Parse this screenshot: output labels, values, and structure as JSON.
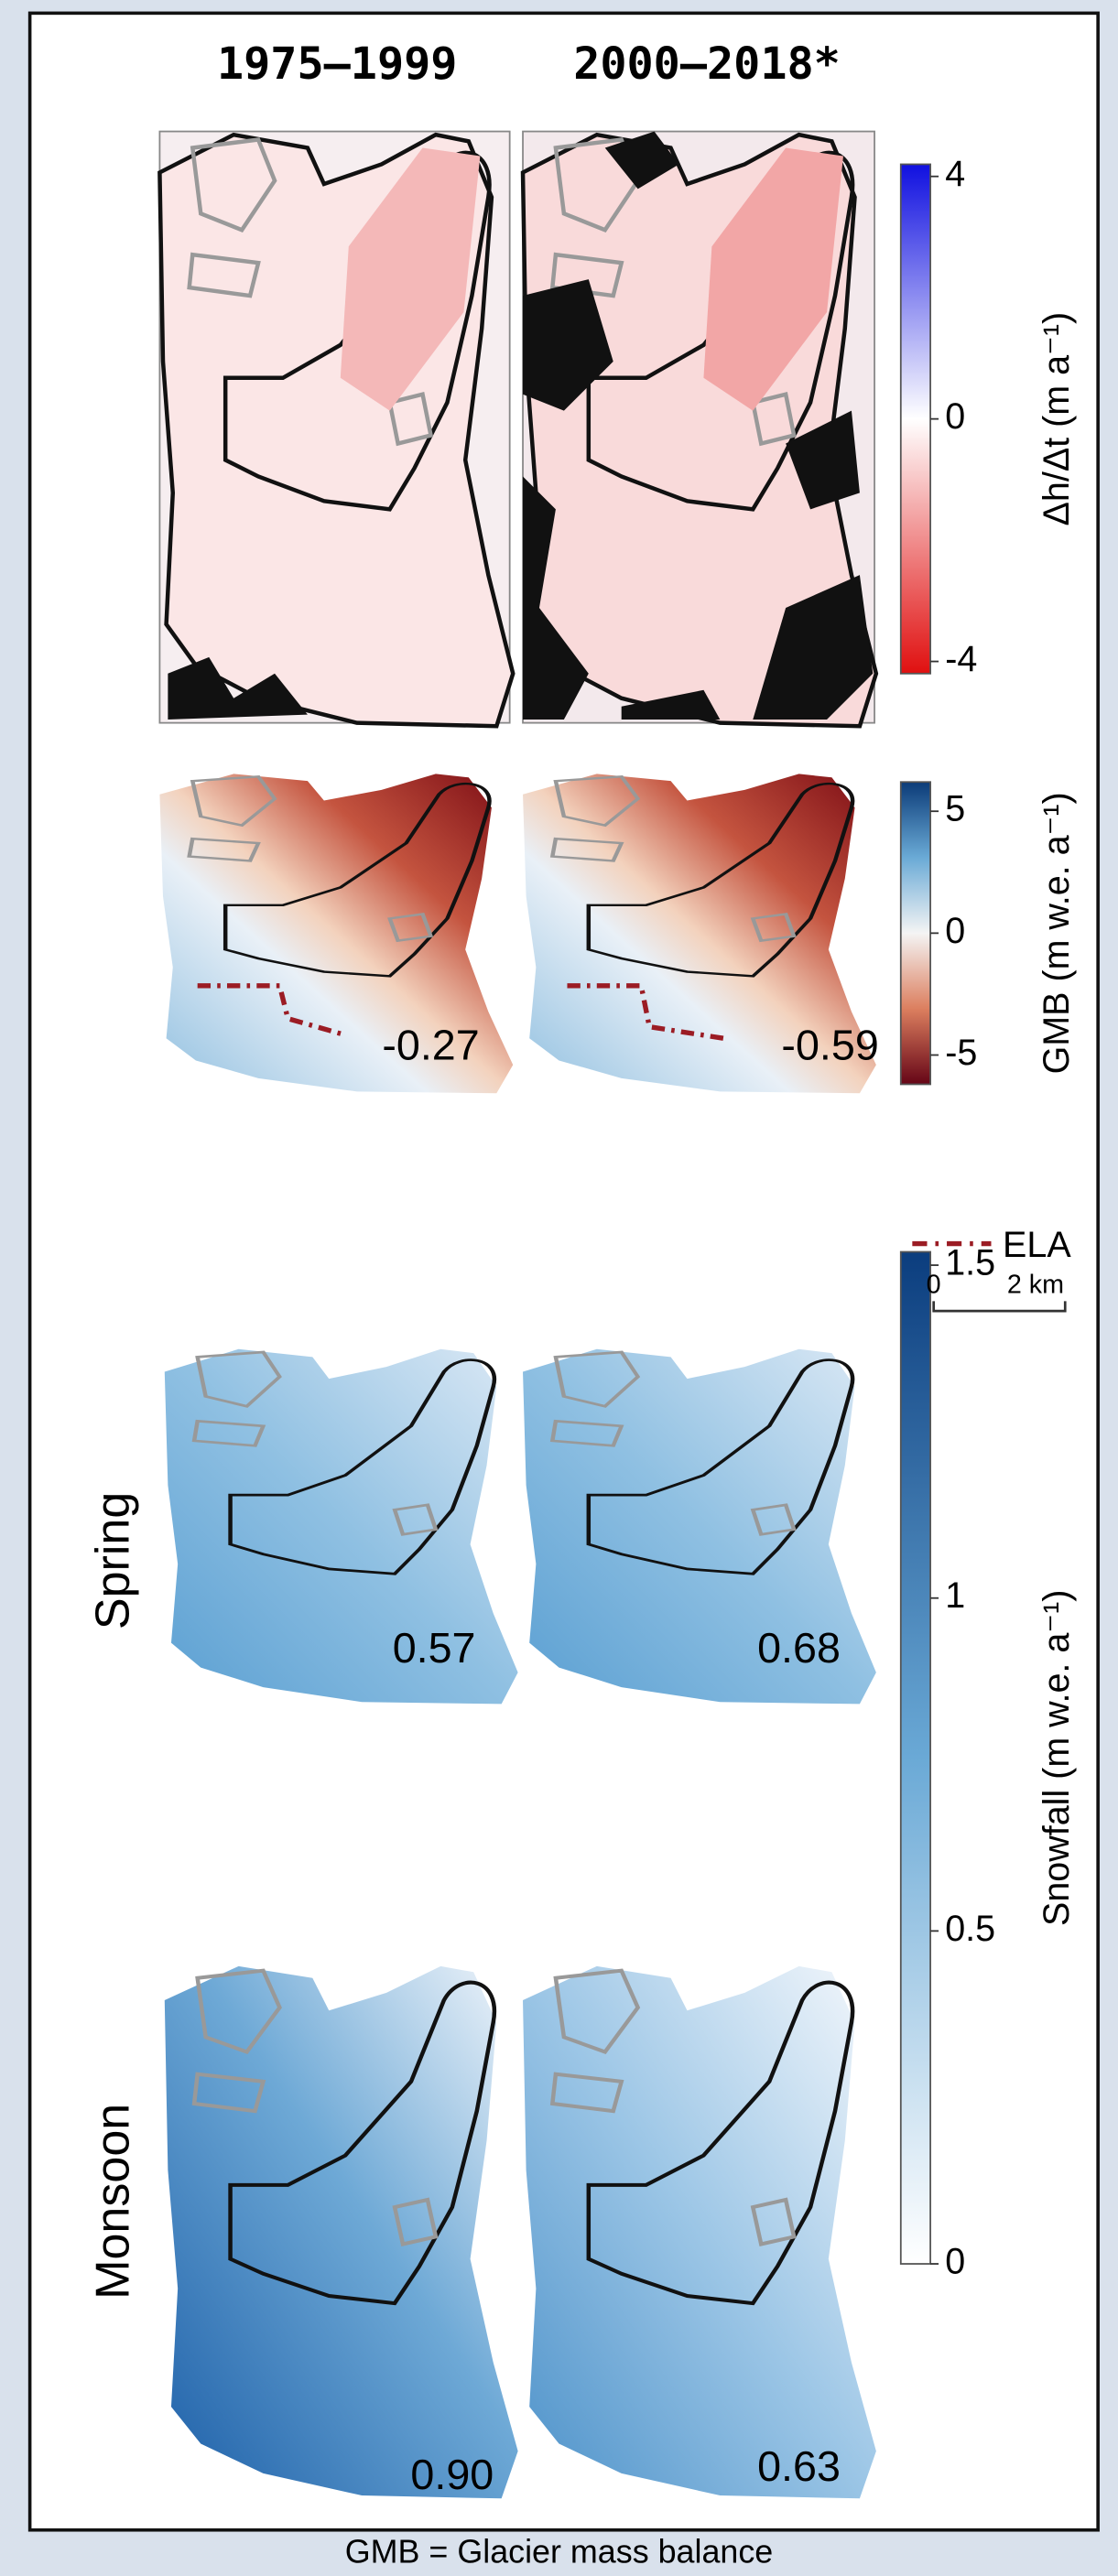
{
  "columns": [
    "1975–1999",
    "2000–2018*"
  ],
  "row_labels": [
    "Spring",
    "Monsoon"
  ],
  "colorbars": [
    {
      "label": "Δh/Δt (m a⁻¹)",
      "lim": [
        -4.2,
        4.2
      ],
      "ticks": [
        4,
        0,
        -4
      ]
    },
    {
      "label": "GMB (m w.e. a⁻¹)",
      "lim": [
        -6.2,
        6.2
      ],
      "ticks": [
        5,
        0,
        -5
      ]
    },
    {
      "label": "Snowfall (m w.e. a⁻¹)",
      "lim": [
        0,
        1.52
      ],
      "ticks": [
        1.5,
        1,
        0.5,
        0
      ]
    }
  ],
  "panel_values": {
    "gmb": [
      "-0.27",
      "-0.59"
    ],
    "spring": [
      "0.57",
      "0.68"
    ],
    "monsoon": [
      "0.90",
      "0.63"
    ]
  },
  "legend": {
    "label": "ELA"
  },
  "scale_bar": {
    "start": "0",
    "end": "2 km"
  },
  "caption": "GMB = Glacier mass balance"
}
